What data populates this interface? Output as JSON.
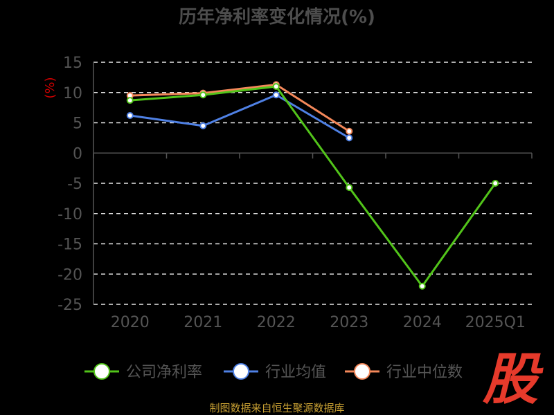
{
  "chart_data": {
    "type": "line",
    "title": "历年净利率变化情况(%)",
    "ylabel": "(%)",
    "categories": [
      "2020",
      "2021",
      "2022",
      "2023",
      "2024",
      "2025Q1"
    ],
    "ylim": [
      -25,
      15
    ],
    "yticks": [
      15,
      10,
      5,
      0,
      -5,
      -10,
      -15,
      -20,
      -25
    ],
    "grid": true,
    "legend_position": "bottom",
    "series": [
      {
        "name": "公司净利率",
        "color": "#52c41a",
        "values": [
          8.7,
          9.6,
          11.0,
          -5.7,
          -22.0,
          -5.0
        ]
      },
      {
        "name": "行业均值",
        "color": "#4f81e5",
        "values": [
          6.2,
          4.5,
          9.6,
          2.5,
          null,
          null
        ]
      },
      {
        "name": "行业中位数",
        "color": "#f4885a",
        "values": [
          9.5,
          9.9,
          11.3,
          3.6,
          null,
          null
        ]
      }
    ]
  },
  "footer": "制图数据来自恒生聚源数据库",
  "logo_text": "股"
}
